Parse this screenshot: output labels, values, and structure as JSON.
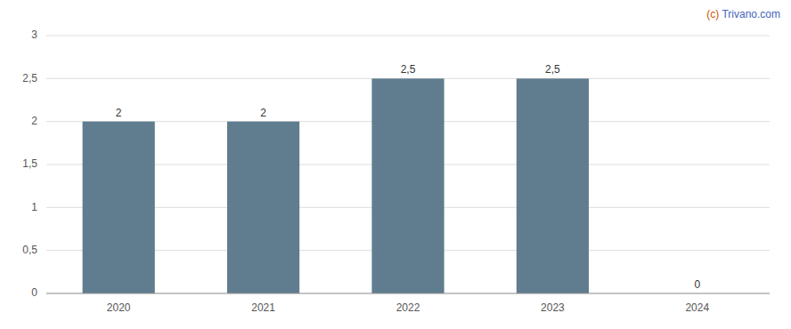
{
  "chart_data": {
    "type": "bar",
    "categories": [
      "2020",
      "2021",
      "2022",
      "2023",
      "2024"
    ],
    "values": [
      2.0,
      2.0,
      2.5,
      2.5,
      0.0
    ],
    "value_labels": [
      "2",
      "2",
      "2,5",
      "2,5",
      "0"
    ],
    "data_labels": true,
    "color": "#607d8f",
    "ylim": [
      0,
      3
    ],
    "yticks": [
      0,
      {
        "value": 0.5,
        "label": "0,5"
      },
      1,
      {
        "value": 1.5,
        "label": "1,5"
      },
      2,
      {
        "value": 2.5,
        "label": "2,5"
      },
      3
    ],
    "grid": true,
    "annotations": [
      {
        "text": "(c)",
        "color": "#cc5500"
      },
      {
        "text": " Trivano.com",
        "color": "#4466bb"
      }
    ]
  }
}
